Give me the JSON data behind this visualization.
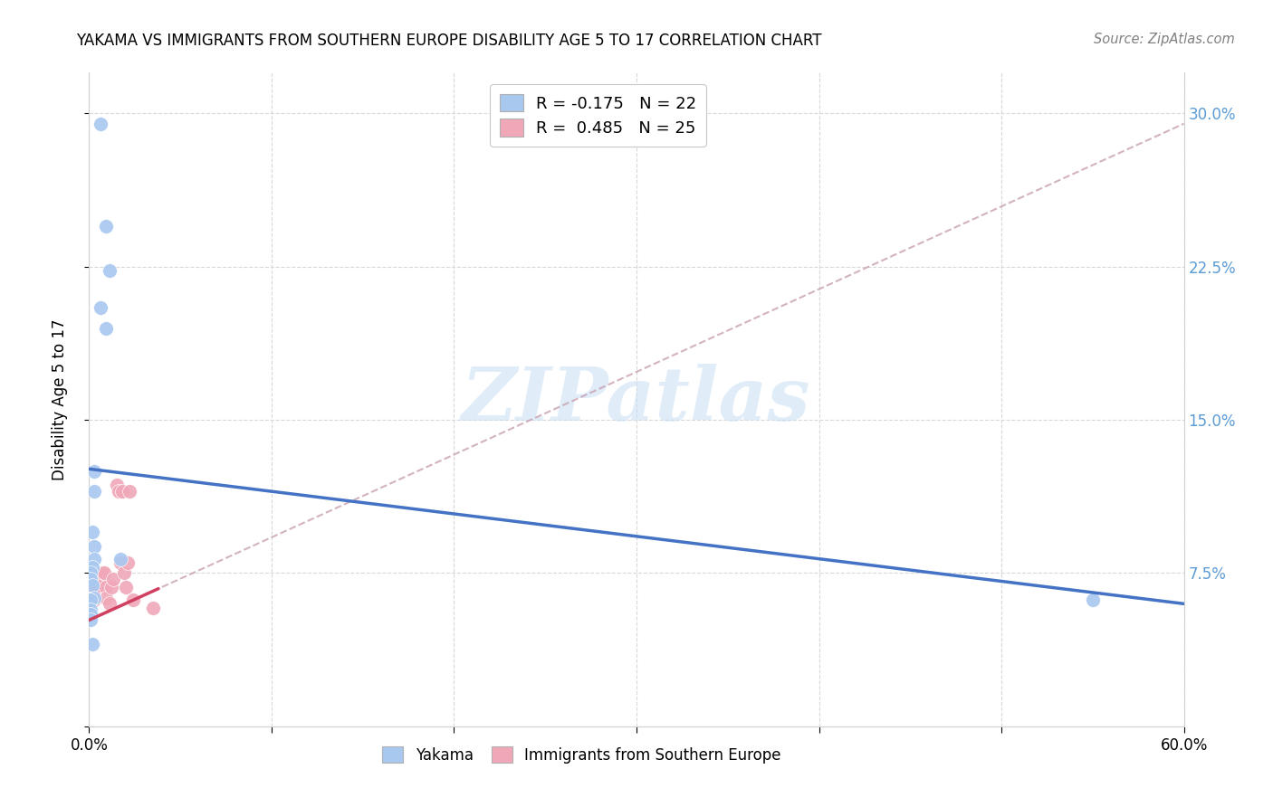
{
  "title": "YAKAMA VS IMMIGRANTS FROM SOUTHERN EUROPE DISABILITY AGE 5 TO 17 CORRELATION CHART",
  "source": "Source: ZipAtlas.com",
  "ylabel": "Disability Age 5 to 17",
  "xlim": [
    0.0,
    0.6
  ],
  "ylim": [
    0.0,
    0.32
  ],
  "xticks": [
    0.0,
    0.1,
    0.2,
    0.3,
    0.4,
    0.5,
    0.6
  ],
  "xticklabels": [
    "0.0%",
    "",
    "",
    "",
    "",
    "",
    "60.0%"
  ],
  "yticks": [
    0.0,
    0.075,
    0.15,
    0.225,
    0.3
  ],
  "yticklabels_right": [
    "",
    "7.5%",
    "15.0%",
    "22.5%",
    "30.0%"
  ],
  "legend1_label": "R = -0.175   N = 22",
  "legend2_label": "R =  0.485   N = 25",
  "blue_color": "#a8c8f0",
  "pink_color": "#f0a8b8",
  "trend_blue": "#4472c4",
  "trend_pink": "#d04060",
  "trend_dashed_color": "#c8a0b0",
  "watermark_text": "ZIPatlas",
  "watermark_color": "#c8dff5",
  "yakama_x": [
    0.006,
    0.009,
    0.011,
    0.006,
    0.009,
    0.003,
    0.003,
    0.002,
    0.003,
    0.003,
    0.002,
    0.001,
    0.001,
    0.002,
    0.003,
    0.001,
    0.001,
    0.001,
    0.001,
    0.002,
    0.017,
    0.55
  ],
  "yakama_y": [
    0.295,
    0.245,
    0.223,
    0.205,
    0.195,
    0.125,
    0.115,
    0.095,
    0.088,
    0.082,
    0.078,
    0.075,
    0.072,
    0.069,
    0.063,
    0.062,
    0.057,
    0.055,
    0.052,
    0.04,
    0.082,
    0.062
  ],
  "immigrants_x": [
    0.001,
    0.002,
    0.003,
    0.002,
    0.003,
    0.004,
    0.005,
    0.006,
    0.007,
    0.008,
    0.009,
    0.009,
    0.011,
    0.012,
    0.013,
    0.015,
    0.016,
    0.017,
    0.018,
    0.019,
    0.02,
    0.021,
    0.022,
    0.024,
    0.035
  ],
  "immigrants_y": [
    0.06,
    0.063,
    0.062,
    0.065,
    0.068,
    0.068,
    0.072,
    0.072,
    0.075,
    0.075,
    0.068,
    0.063,
    0.06,
    0.068,
    0.072,
    0.118,
    0.115,
    0.08,
    0.115,
    0.075,
    0.068,
    0.08,
    0.115,
    0.062,
    0.058
  ],
  "blue_trend_x0": 0.0,
  "blue_trend_y0": 0.126,
  "blue_trend_x1": 0.6,
  "blue_trend_y1": 0.06,
  "pink_trend_x0": 0.0,
  "pink_trend_y0": 0.052,
  "pink_trend_x1": 0.6,
  "pink_trend_y1": 0.295
}
